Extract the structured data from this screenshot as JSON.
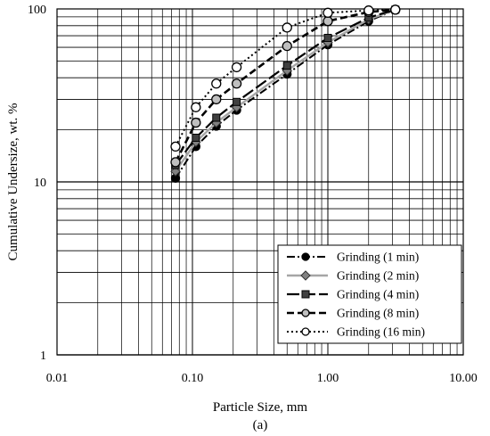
{
  "chart_data": {
    "type": "line",
    "xscale": "log",
    "yscale": "log",
    "xlim": [
      0.01,
      10
    ],
    "ylim": [
      1,
      100
    ],
    "xlabel": "Particle Size, mm",
    "ylabel": "Cumulative Undersize, wt. %",
    "caption": "(a)",
    "grid": true,
    "legend_position": "bottom-right",
    "x_ticks": [
      "0.01",
      "0.10",
      "1.00",
      "10.00"
    ],
    "y_ticks": [
      "1",
      "10",
      "100"
    ],
    "series": [
      {
        "name": "Grinding (1 min)",
        "line": "dashdot",
        "marker": "circle",
        "marker_fill": "#000000",
        "color": "#000000",
        "x": [
          0.075,
          0.106,
          0.15,
          0.212,
          0.5,
          1.0,
          2.0,
          3.15
        ],
        "y": [
          10.5,
          16,
          21,
          26,
          42,
          62,
          85,
          99
        ]
      },
      {
        "name": "Grinding (2 min)",
        "line": "solid",
        "marker": "diamond",
        "marker_fill": "#808080",
        "color": "#a6a6a6",
        "x": [
          0.075,
          0.106,
          0.15,
          0.212,
          0.5,
          1.0,
          2.0,
          3.15
        ],
        "y": [
          11.5,
          17,
          22,
          27,
          44,
          64,
          87,
          99
        ]
      },
      {
        "name": "Grinding (4 min)",
        "line": "longdash",
        "marker": "square",
        "marker_fill": "#404040",
        "color": "#000000",
        "x": [
          0.075,
          0.106,
          0.15,
          0.212,
          0.5,
          1.0,
          2.0,
          3.15
        ],
        "y": [
          12.5,
          18,
          23.5,
          29,
          47,
          68,
          89,
          99
        ]
      },
      {
        "name": "Grinding (8 min)",
        "line": "dash",
        "marker": "circle",
        "marker_fill": "#bfbfbf",
        "color": "#000000",
        "x": [
          0.075,
          0.106,
          0.15,
          0.212,
          0.5,
          1.0,
          2.0,
          3.15
        ],
        "y": [
          13,
          22,
          30,
          37,
          61,
          85,
          96,
          99
        ]
      },
      {
        "name": "Grinding (16 min)",
        "line": "dot",
        "marker": "circle",
        "marker_fill": "#ffffff",
        "color": "#000000",
        "x": [
          0.075,
          0.106,
          0.15,
          0.212,
          0.5,
          1.0,
          2.0,
          3.15
        ],
        "y": [
          16,
          27,
          37,
          46,
          78,
          95,
          98,
          99
        ]
      }
    ]
  }
}
